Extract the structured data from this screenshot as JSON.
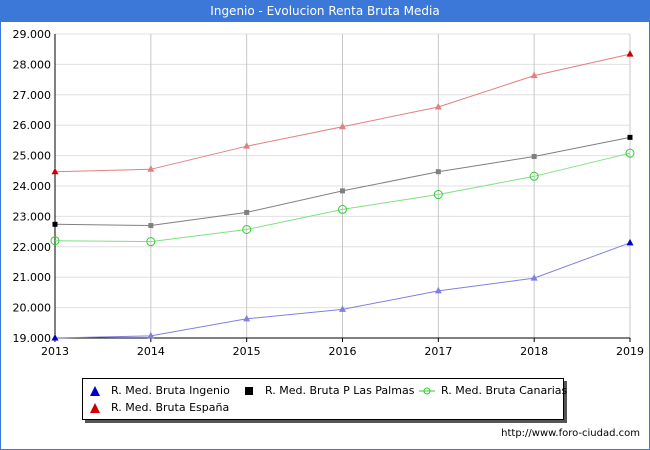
{
  "header": {
    "title": "Ingenio - Evolucion Renta Bruta Media"
  },
  "footer": {
    "url": "http://www.foro-ciudad.com"
  },
  "chart_data": {
    "type": "line",
    "title": "Ingenio - Evolucion Renta Bruta Media",
    "xlabel": "",
    "ylabel": "",
    "x": [
      2013,
      2014,
      2015,
      2016,
      2017,
      2018,
      2019
    ],
    "ylim": [
      19000,
      29000
    ],
    "yticks": [
      "19.000",
      "20.000",
      "21.000",
      "22.000",
      "23.000",
      "24.000",
      "25.000",
      "26.000",
      "27.000",
      "28.000",
      "29.000"
    ],
    "xticks": [
      "2013",
      "2014",
      "2015",
      "2016",
      "2017",
      "2018",
      "2019"
    ],
    "grid": true,
    "legend_position": "bottom",
    "series": [
      {
        "name": "R. Med. Bruta Ingenio",
        "color": "#0000cc",
        "line_color": "#8080e0",
        "marker": "triangle",
        "values": [
          19000,
          19070,
          19630,
          19940,
          20550,
          20970,
          22130
        ]
      },
      {
        "name": "R. Med. Bruta P Las Palmas",
        "color": "#000000",
        "line_color": "#808080",
        "marker": "square",
        "values": [
          22740,
          22700,
          23130,
          23840,
          24470,
          24970,
          25600
        ]
      },
      {
        "name": "R. Med. Bruta Canarias",
        "color": "#33cc33",
        "line_color": "#80e080",
        "marker": "circle",
        "values": [
          22200,
          22170,
          22570,
          23230,
          23720,
          24320,
          25080
        ]
      },
      {
        "name": "R. Med. Bruta España",
        "color": "#cc0000",
        "line_color": "#e08080",
        "marker": "triangle",
        "values": [
          24470,
          24550,
          25310,
          25950,
          26600,
          27630,
          28340
        ]
      }
    ]
  }
}
